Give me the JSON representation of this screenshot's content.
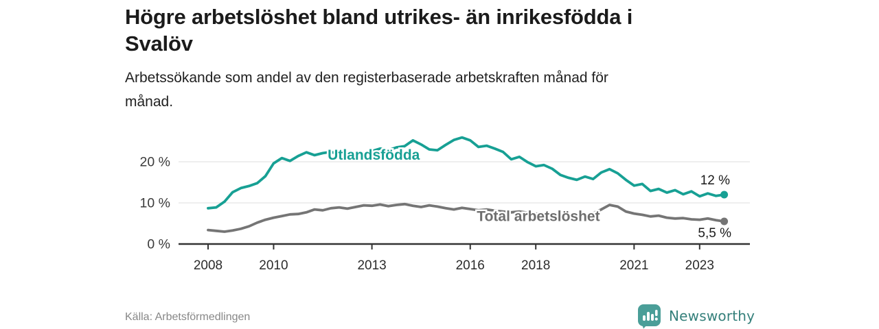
{
  "header": {
    "title_lines": [
      "Högre arbetslöshet bland utrikes- än inrikesfödda i",
      "Svalöv"
    ],
    "subtitle_lines": [
      "Arbetssökande som andel av den registerbaserade arbetskraften månad för",
      "månad."
    ]
  },
  "footer": {
    "source_label": "Källa: Arbetsförmedlingen",
    "brand_name": "Newsworthy",
    "brand_color": "#4a9e98",
    "brand_text_color": "#35807b"
  },
  "chart_data": {
    "type": "line",
    "title": "Högre arbetslöshet bland utrikes- än inrikesfödda i Svalöv",
    "subtitle": "Arbetssökande som andel av den registerbaserade arbetskraften månad för månad.",
    "xlabel": "",
    "ylabel": "",
    "x_range": [
      2008,
      2024.5
    ],
    "ylim": [
      0,
      27
    ],
    "grid": "horizontal",
    "legend_position": "inline-labels",
    "y_ticks": [
      {
        "value": 20,
        "label": "20 %"
      },
      {
        "value": 10,
        "label": "10 %"
      },
      {
        "value": 0,
        "label": "0 %"
      }
    ],
    "x_ticks": [
      {
        "value": 2008,
        "label": "2008"
      },
      {
        "value": 2010,
        "label": "2010"
      },
      {
        "value": 2013,
        "label": "2013"
      },
      {
        "value": 2016,
        "label": "2016"
      },
      {
        "value": 2018,
        "label": "2018"
      },
      {
        "value": 2021,
        "label": "2021"
      },
      {
        "value": 2023,
        "label": "2023"
      }
    ],
    "series": [
      {
        "name": "Utlandsfödda",
        "color": "#17a094",
        "label_color": "#17a094",
        "end_value_label": "12 %",
        "points": [
          [
            2008.0,
            8.7
          ],
          [
            2008.25,
            8.9
          ],
          [
            2008.5,
            10.3
          ],
          [
            2008.75,
            12.6
          ],
          [
            2009.0,
            13.6
          ],
          [
            2009.25,
            14.1
          ],
          [
            2009.5,
            14.8
          ],
          [
            2009.75,
            16.5
          ],
          [
            2010.0,
            19.6
          ],
          [
            2010.25,
            20.9
          ],
          [
            2010.5,
            20.2
          ],
          [
            2010.75,
            21.4
          ],
          [
            2011.0,
            22.3
          ],
          [
            2011.25,
            21.6
          ],
          [
            2011.5,
            22.1
          ],
          [
            2011.75,
            22.4
          ],
          [
            2012.0,
            21.8
          ],
          [
            2012.25,
            22.3
          ],
          [
            2012.5,
            21.6
          ],
          [
            2012.75,
            22.1
          ],
          [
            2013.0,
            22.6
          ],
          [
            2013.25,
            23.2
          ],
          [
            2013.5,
            22.8
          ],
          [
            2013.75,
            23.5
          ],
          [
            2014.0,
            23.8
          ],
          [
            2014.25,
            25.2
          ],
          [
            2014.5,
            24.2
          ],
          [
            2014.75,
            23.0
          ],
          [
            2015.0,
            22.8
          ],
          [
            2015.25,
            24.1
          ],
          [
            2015.5,
            25.3
          ],
          [
            2015.75,
            25.9
          ],
          [
            2016.0,
            25.2
          ],
          [
            2016.25,
            23.6
          ],
          [
            2016.5,
            23.9
          ],
          [
            2016.75,
            23.2
          ],
          [
            2017.0,
            22.4
          ],
          [
            2017.25,
            20.6
          ],
          [
            2017.5,
            21.2
          ],
          [
            2017.75,
            19.9
          ],
          [
            2018.0,
            18.9
          ],
          [
            2018.25,
            19.2
          ],
          [
            2018.5,
            18.3
          ],
          [
            2018.75,
            16.8
          ],
          [
            2019.0,
            16.1
          ],
          [
            2019.25,
            15.6
          ],
          [
            2019.5,
            16.4
          ],
          [
            2019.75,
            15.8
          ],
          [
            2020.0,
            17.4
          ],
          [
            2020.25,
            18.2
          ],
          [
            2020.5,
            17.2
          ],
          [
            2020.75,
            15.6
          ],
          [
            2021.0,
            14.2
          ],
          [
            2021.25,
            14.6
          ],
          [
            2021.5,
            12.9
          ],
          [
            2021.75,
            13.4
          ],
          [
            2022.0,
            12.5
          ],
          [
            2022.25,
            13.1
          ],
          [
            2022.5,
            12.1
          ],
          [
            2022.75,
            12.8
          ],
          [
            2023.0,
            11.6
          ],
          [
            2023.25,
            12.3
          ],
          [
            2023.5,
            11.7
          ],
          [
            2023.75,
            12.0
          ]
        ]
      },
      {
        "name": "Total arbetslöshet",
        "color": "#757575",
        "label_color": "#6e6e6e",
        "end_value_label": "5,5 %",
        "points": [
          [
            2008.0,
            3.4
          ],
          [
            2008.25,
            3.2
          ],
          [
            2008.5,
            3.0
          ],
          [
            2008.75,
            3.3
          ],
          [
            2009.0,
            3.7
          ],
          [
            2009.25,
            4.3
          ],
          [
            2009.5,
            5.2
          ],
          [
            2009.75,
            5.9
          ],
          [
            2010.0,
            6.4
          ],
          [
            2010.25,
            6.8
          ],
          [
            2010.5,
            7.2
          ],
          [
            2010.75,
            7.3
          ],
          [
            2011.0,
            7.7
          ],
          [
            2011.25,
            8.4
          ],
          [
            2011.5,
            8.2
          ],
          [
            2011.75,
            8.7
          ],
          [
            2012.0,
            8.9
          ],
          [
            2012.25,
            8.6
          ],
          [
            2012.5,
            9.0
          ],
          [
            2012.75,
            9.4
          ],
          [
            2013.0,
            9.3
          ],
          [
            2013.25,
            9.6
          ],
          [
            2013.5,
            9.2
          ],
          [
            2013.75,
            9.5
          ],
          [
            2014.0,
            9.7
          ],
          [
            2014.25,
            9.3
          ],
          [
            2014.5,
            9.0
          ],
          [
            2014.75,
            9.4
          ],
          [
            2015.0,
            9.1
          ],
          [
            2015.25,
            8.7
          ],
          [
            2015.5,
            8.4
          ],
          [
            2015.75,
            8.8
          ],
          [
            2016.0,
            8.5
          ],
          [
            2016.25,
            8.2
          ],
          [
            2016.5,
            8.4
          ],
          [
            2016.75,
            8.1
          ],
          [
            2017.0,
            7.9
          ],
          [
            2017.25,
            7.7
          ],
          [
            2017.5,
            7.9
          ],
          [
            2017.75,
            7.6
          ],
          [
            2018.0,
            7.4
          ],
          [
            2018.25,
            7.2
          ],
          [
            2018.5,
            7.0
          ],
          [
            2018.75,
            6.9
          ],
          [
            2019.0,
            6.8
          ],
          [
            2019.25,
            6.9
          ],
          [
            2019.5,
            7.1
          ],
          [
            2019.75,
            7.5
          ],
          [
            2020.0,
            8.4
          ],
          [
            2020.25,
            9.5
          ],
          [
            2020.5,
            9.1
          ],
          [
            2020.75,
            7.9
          ],
          [
            2021.0,
            7.4
          ],
          [
            2021.25,
            7.1
          ],
          [
            2021.5,
            6.7
          ],
          [
            2021.75,
            6.9
          ],
          [
            2022.0,
            6.4
          ],
          [
            2022.25,
            6.2
          ],
          [
            2022.5,
            6.3
          ],
          [
            2022.75,
            6.0
          ],
          [
            2023.0,
            5.9
          ],
          [
            2023.25,
            6.2
          ],
          [
            2023.5,
            5.8
          ],
          [
            2023.75,
            5.5
          ]
        ]
      }
    ],
    "series_label_anchors": [
      {
        "name": "Utlandsfödda",
        "x_year": 2011.65,
        "y_pct": 20.5
      },
      {
        "name": "Total arbetslöshet",
        "x_year": 2016.2,
        "y_pct": 5.6
      }
    ]
  }
}
